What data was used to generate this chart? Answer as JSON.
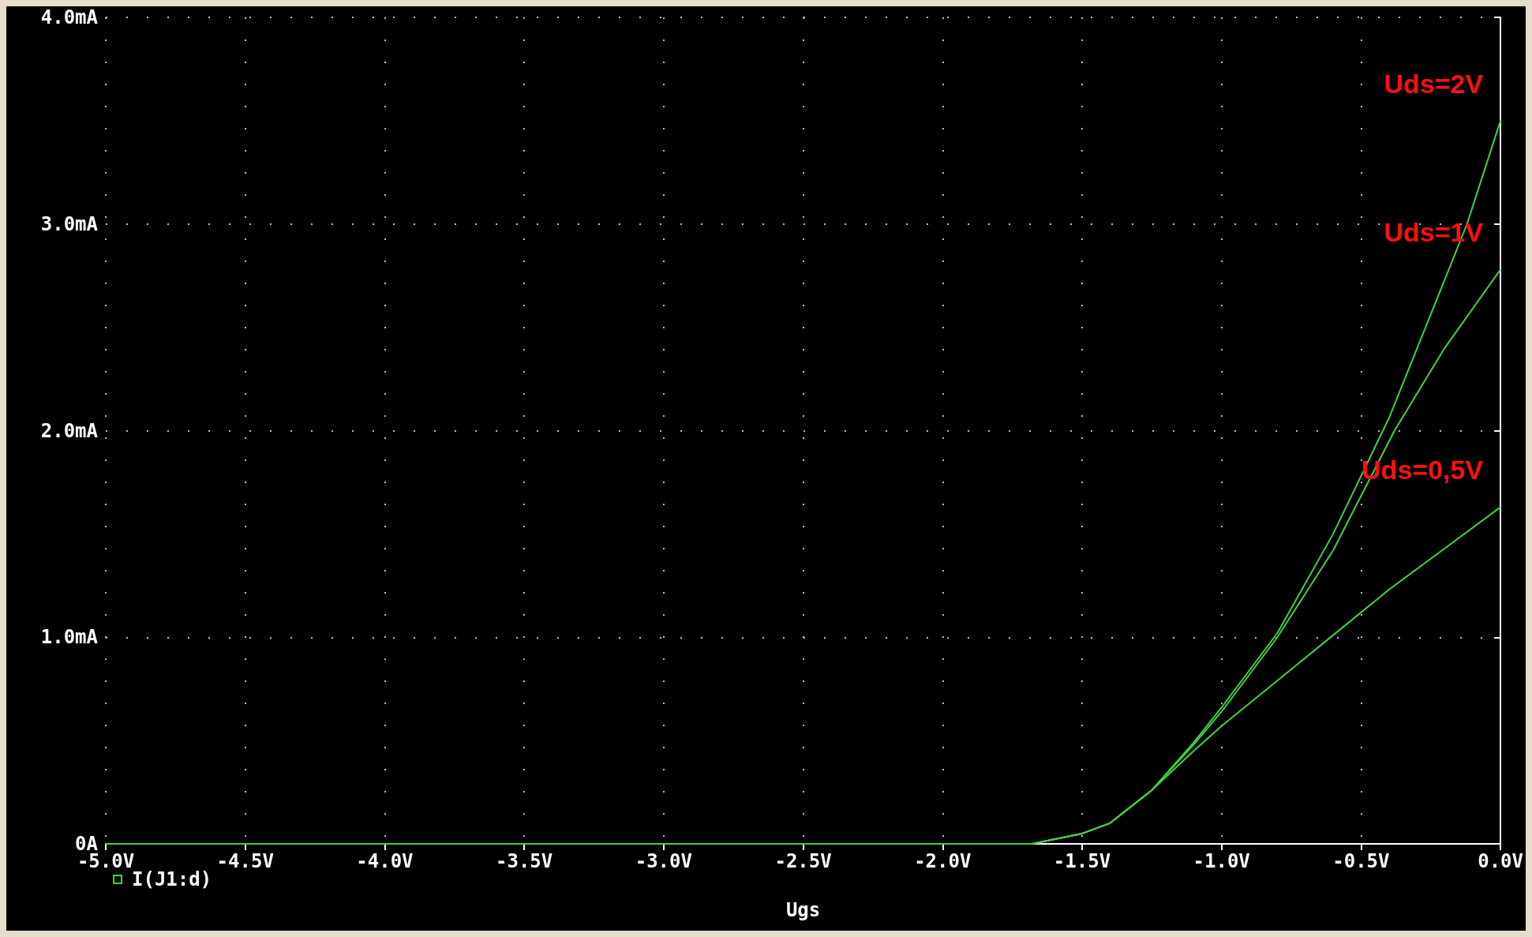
{
  "chart_data": {
    "type": "line",
    "xlabel": "Ugs",
    "annotations": [
      "I(J1:d)"
    ],
    "grid": true,
    "line_style": "solid",
    "marker": "none",
    "xlim": [
      -5,
      0
    ],
    "xticks": [
      {
        "value": -5,
        "label": "-5.0V"
      },
      {
        "value": -4.5,
        "label": "-4.5V"
      },
      {
        "value": -4,
        "label": "-4.0V"
      },
      {
        "value": -3.5,
        "label": "-3.5V"
      },
      {
        "value": -3,
        "label": "-3.0V"
      },
      {
        "value": -2.5,
        "label": "-2.5V"
      },
      {
        "value": -2,
        "label": "-2.0V"
      },
      {
        "value": -1.5,
        "label": "-1.5V"
      },
      {
        "value": -1,
        "label": "-1.0V"
      },
      {
        "value": -0.5,
        "label": "-0.5V"
      },
      {
        "value": 0,
        "label": "0.0V"
      }
    ],
    "ylim": [
      0,
      4
    ],
    "yticks": [
      {
        "value": 0,
        "label": "0A"
      },
      {
        "value": 1,
        "label": "1.0mA"
      },
      {
        "value": 2,
        "label": "2.0mA"
      },
      {
        "value": 3,
        "label": "3.0mA"
      },
      {
        "value": 4,
        "label": "4.0mA"
      }
    ],
    "series": [
      {
        "name": "Uds=2V",
        "color": "#3fd23f",
        "x": [
          -5,
          -1.68,
          -1.5,
          -1.4,
          -1.25,
          -1.1,
          -1.0,
          -0.8,
          -0.6,
          -0.4,
          -0.2,
          -0.12,
          0
        ],
        "values": [
          0,
          0,
          0.05,
          0.1,
          0.26,
          0.49,
          0.66,
          1.02,
          1.5,
          2.06,
          2.73,
          3.0,
          3.5
        ]
      },
      {
        "name": "Uds=1V",
        "color": "#3fd23f",
        "x": [
          -5,
          -1.68,
          -1.5,
          -1.4,
          -1.25,
          -1.1,
          -1.0,
          -0.8,
          -0.6,
          -0.38,
          -0.2,
          0
        ],
        "values": [
          0,
          0,
          0.05,
          0.1,
          0.26,
          0.48,
          0.64,
          1.0,
          1.42,
          2.0,
          2.4,
          2.78
        ]
      },
      {
        "name": "Uds=0,5V",
        "color": "#3fd23f",
        "x": [
          -5,
          -1.68,
          -1.5,
          -1.4,
          -1.25,
          -1.1,
          -1.0,
          -0.8,
          -0.6,
          -0.4,
          -0.2,
          0
        ],
        "values": [
          0,
          0,
          0.05,
          0.1,
          0.26,
          0.45,
          0.57,
          0.79,
          1.01,
          1.23,
          1.43,
          1.63
        ]
      }
    ]
  }
}
